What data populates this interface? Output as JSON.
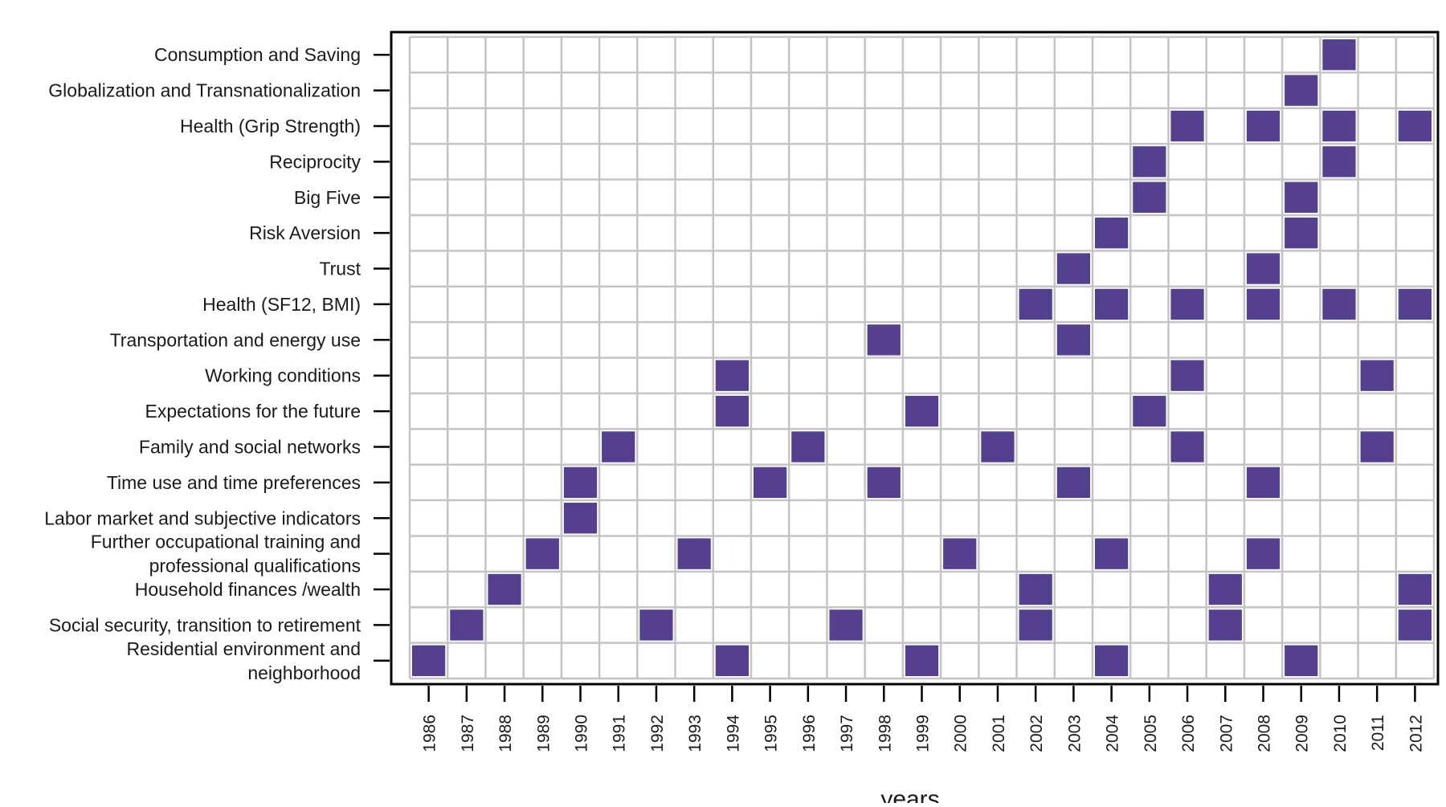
{
  "chart_data": {
    "type": "heatmap",
    "title": "",
    "xlabel": "years",
    "ylabel": "",
    "grid": true,
    "cell_color": "#553f8f",
    "grid_color": "#c4c4c4",
    "years": [
      1986,
      1987,
      1988,
      1989,
      1990,
      1991,
      1992,
      1993,
      1994,
      1995,
      1996,
      1997,
      1998,
      1999,
      2000,
      2001,
      2002,
      2003,
      2004,
      2005,
      2006,
      2007,
      2008,
      2009,
      2010,
      2011,
      2012
    ],
    "rows": [
      {
        "label": [
          "Consumption and Saving"
        ],
        "years": [
          2010
        ]
      },
      {
        "label": [
          "Globalization and Transnationalization"
        ],
        "years": [
          2009
        ]
      },
      {
        "label": [
          "Health (Grip Strength)"
        ],
        "years": [
          2006,
          2008,
          2010,
          2012
        ]
      },
      {
        "label": [
          "Reciprocity"
        ],
        "years": [
          2005,
          2010
        ]
      },
      {
        "label": [
          "Big Five"
        ],
        "years": [
          2005,
          2009
        ]
      },
      {
        "label": [
          "Risk Aversion"
        ],
        "years": [
          2004,
          2009
        ]
      },
      {
        "label": [
          "Trust"
        ],
        "years": [
          2003,
          2008
        ]
      },
      {
        "label": [
          "Health (SF12, BMI)"
        ],
        "years": [
          2002,
          2004,
          2006,
          2008,
          2010,
          2012
        ]
      },
      {
        "label": [
          "Transportation and energy use"
        ],
        "years": [
          1998,
          2003
        ]
      },
      {
        "label": [
          "Working conditions"
        ],
        "years": [
          1994,
          2006,
          2011
        ]
      },
      {
        "label": [
          "Expectations for the future"
        ],
        "years": [
          1994,
          1999,
          2005
        ]
      },
      {
        "label": [
          "Family and social networks"
        ],
        "years": [
          1991,
          1996,
          2001,
          2006,
          2011
        ]
      },
      {
        "label": [
          "Time use and time preferences"
        ],
        "years": [
          1990,
          1995,
          1998,
          2003,
          2008
        ]
      },
      {
        "label": [
          "Labor market and subjective indicators"
        ],
        "years": [
          1990
        ]
      },
      {
        "label": [
          "Further occupational training and",
          "professional qualifications"
        ],
        "years": [
          1989,
          1993,
          2000,
          2004,
          2008
        ]
      },
      {
        "label": [
          "Household finances /wealth"
        ],
        "years": [
          1988,
          2002,
          2007,
          2012
        ]
      },
      {
        "label": [
          "Social security, transition to retirement"
        ],
        "years": [
          1987,
          1992,
          1997,
          2002,
          2007,
          2012
        ]
      },
      {
        "label": [
          "Residential environment and",
          "neighborhood"
        ],
        "years": [
          1986,
          1994,
          1999,
          2004,
          2009
        ]
      }
    ]
  }
}
